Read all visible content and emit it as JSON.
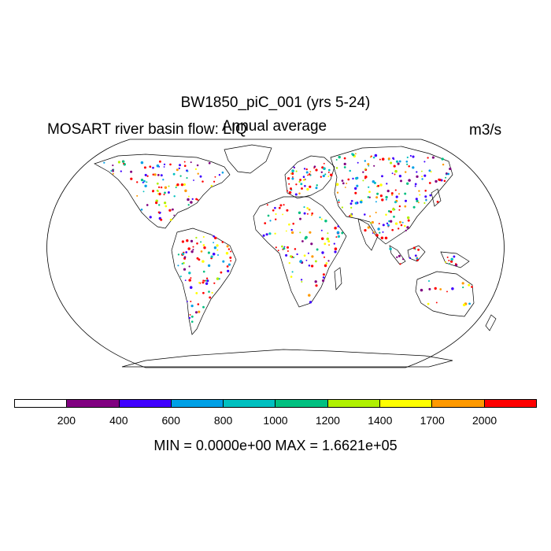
{
  "title": "BW1850_piC_001 (yrs 5-24)",
  "left_title": "MOSART river basin flow: LIQ",
  "center_title": "Annual average",
  "units": "m3/s",
  "colorbar": {
    "colors": [
      "#ffffff",
      "#800080",
      "#3f00ff",
      "#00a0e6",
      "#00c0c0",
      "#00c080",
      "#b0f000",
      "#ffff00",
      "#ff9900",
      "#ff0000"
    ],
    "tick_labels": [
      "200",
      "400",
      "600",
      "800",
      "1000",
      "1200",
      "1400",
      "1700",
      "2000"
    ]
  },
  "minmax": "MIN = 0.0000e+00 MAX = 1.6621e+05",
  "map": {
    "projection": "Robinson",
    "field": "river basin flow"
  }
}
